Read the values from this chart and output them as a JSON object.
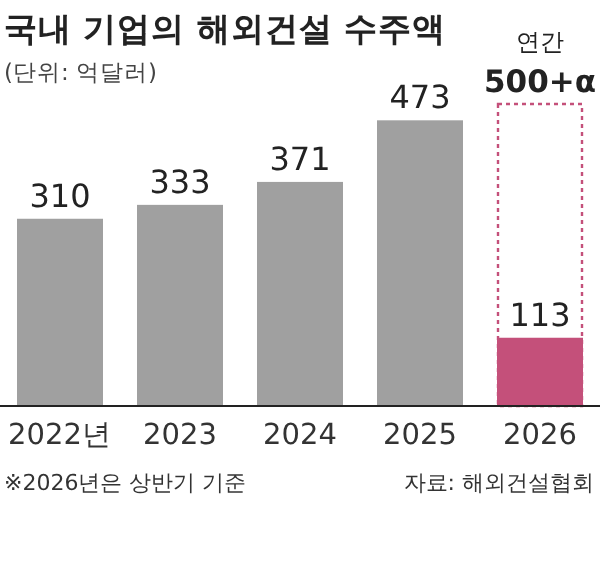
{
  "chart_data": {
    "type": "bar",
    "title": "국내 기업의 해외건설 수주액",
    "subtitle": "(단위: 억달러)",
    "categories": [
      "2022년",
      "2023",
      "2024",
      "2025",
      "2026"
    ],
    "series": [
      {
        "color": "#a0a0a0",
        "values": [
          310,
          333,
          371,
          473,
          null
        ],
        "value_labels": [
          "310",
          "333",
          "371",
          "473",
          null
        ]
      },
      {
        "color": "#c4507a",
        "values": [
          null,
          null,
          null,
          null,
          113
        ],
        "value_labels": [
          null,
          null,
          null,
          null,
          "113"
        ]
      },
      {
        "color": "#c4507a",
        "line_style": "dashed",
        "values": [
          null,
          null,
          null,
          null,
          500
        ],
        "value_labels": [
          null,
          null,
          null,
          null,
          "500+α"
        ]
      }
    ],
    "annotations": [
      {
        "text": "연간",
        "x": "2026",
        "y": 500
      },
      "※2026년은 상반기 기준",
      "자료: 해외건설협회"
    ]
  }
}
